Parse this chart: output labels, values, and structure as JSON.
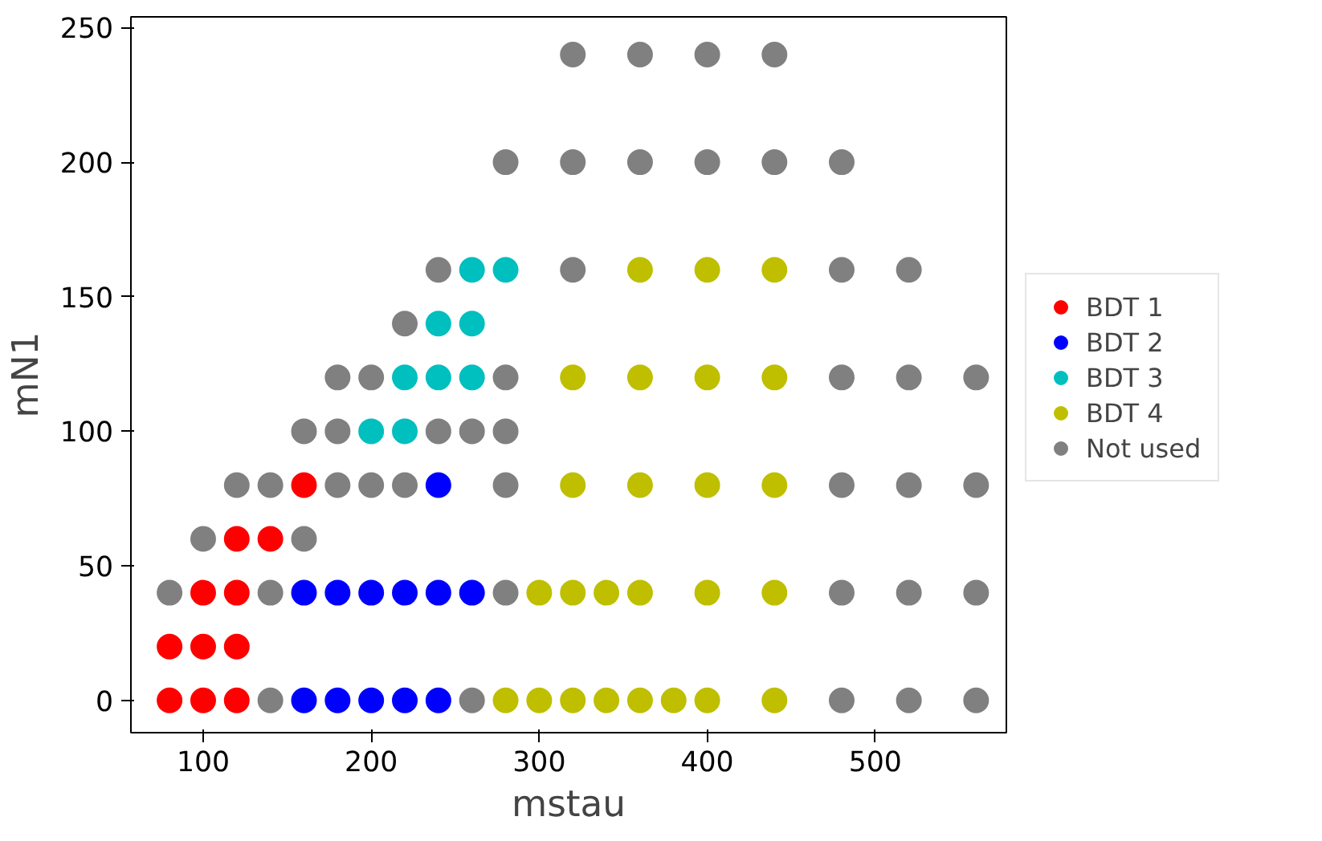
{
  "chart_data": {
    "type": "scatter",
    "xlabel": "mstau",
    "ylabel": "mN1",
    "xlim": [
      57,
      578
    ],
    "ylim": [
      -12,
      254
    ],
    "xticks": [
      100,
      200,
      300,
      400,
      500
    ],
    "yticks": [
      0,
      50,
      100,
      150,
      200,
      250
    ],
    "grid": false,
    "legend": "right",
    "marker": "circle",
    "series": [
      {
        "name": "BDT 1",
        "color": "#ff0000",
        "x": [
          80,
          100,
          120,
          80,
          100,
          120,
          100,
          120,
          120,
          140,
          160
        ],
        "values": [
          0,
          0,
          0,
          20,
          20,
          20,
          40,
          40,
          60,
          60,
          80
        ]
      },
      {
        "name": "BDT 2",
        "color": "#0000ff",
        "x": [
          160,
          180,
          200,
          220,
          240,
          160,
          180,
          200,
          220,
          240,
          260,
          240
        ],
        "values": [
          0,
          0,
          0,
          0,
          0,
          40,
          40,
          40,
          40,
          40,
          40,
          80
        ]
      },
      {
        "name": "BDT 3",
        "color": "#00bfbf",
        "x": [
          200,
          220,
          220,
          240,
          260,
          240,
          260,
          260,
          280
        ],
        "values": [
          100,
          100,
          120,
          120,
          120,
          140,
          140,
          160,
          160
        ]
      },
      {
        "name": "BDT 4",
        "color": "#bfbf00",
        "x": [
          280,
          300,
          320,
          340,
          360,
          380,
          400,
          440,
          300,
          320,
          340,
          360,
          400,
          440,
          320,
          360,
          400,
          440,
          320,
          360,
          400,
          440,
          360,
          400,
          440
        ],
        "values": [
          0,
          0,
          0,
          0,
          0,
          0,
          0,
          0,
          40,
          40,
          40,
          40,
          40,
          40,
          80,
          80,
          80,
          80,
          120,
          120,
          120,
          120,
          160,
          160,
          160
        ]
      },
      {
        "name": "Not used",
        "color": "#808080",
        "x": [
          140,
          260,
          480,
          520,
          560,
          80,
          140,
          280,
          480,
          520,
          560,
          100,
          160,
          120,
          140,
          180,
          200,
          220,
          280,
          480,
          520,
          560,
          160,
          180,
          240,
          260,
          280,
          180,
          200,
          280,
          480,
          520,
          560,
          220,
          240,
          320,
          480,
          520,
          280,
          320,
          360,
          400,
          440,
          480,
          320,
          360,
          400,
          440
        ],
        "values": [
          0,
          0,
          0,
          0,
          0,
          40,
          40,
          40,
          40,
          40,
          40,
          60,
          60,
          80,
          80,
          80,
          80,
          80,
          80,
          80,
          80,
          80,
          100,
          100,
          100,
          100,
          100,
          120,
          120,
          120,
          120,
          120,
          120,
          140,
          160,
          160,
          160,
          160,
          200,
          200,
          200,
          200,
          200,
          200,
          240,
          240,
          240,
          240
        ]
      }
    ]
  }
}
